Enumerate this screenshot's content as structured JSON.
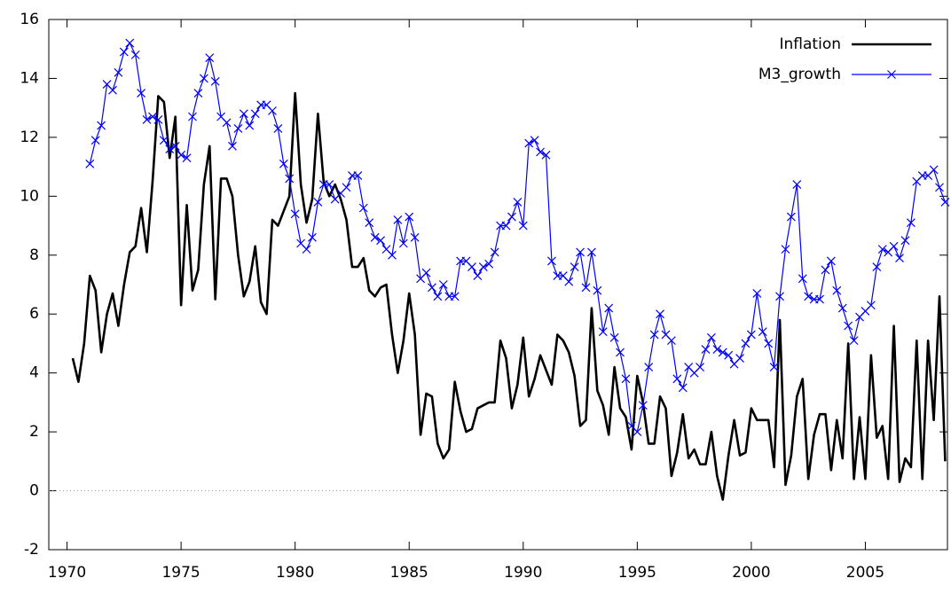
{
  "chart_data": {
    "type": "line",
    "x": [
      1970.25,
      1970.5,
      1970.75,
      1971,
      1971.25,
      1971.5,
      1971.75,
      1972,
      1972.25,
      1972.5,
      1972.75,
      1973,
      1973.25,
      1973.5,
      1973.75,
      1974,
      1974.25,
      1974.5,
      1974.75,
      1975,
      1975.25,
      1975.5,
      1975.75,
      1976,
      1976.25,
      1976.5,
      1976.75,
      1977,
      1977.25,
      1977.5,
      1977.75,
      1978,
      1978.25,
      1978.5,
      1978.75,
      1979,
      1979.25,
      1979.5,
      1979.75,
      1980,
      1980.25,
      1980.5,
      1980.75,
      1981,
      1981.25,
      1981.5,
      1981.75,
      1982,
      1982.25,
      1982.5,
      1982.75,
      1983,
      1983.25,
      1983.5,
      1983.75,
      1984,
      1984.25,
      1984.5,
      1984.75,
      1985,
      1985.25,
      1985.5,
      1985.75,
      1986,
      1986.25,
      1986.5,
      1986.75,
      1987,
      1987.25,
      1987.5,
      1987.75,
      1988,
      1988.25,
      1988.5,
      1988.75,
      1989,
      1989.25,
      1989.5,
      1989.75,
      1990,
      1990.25,
      1990.5,
      1990.75,
      1991,
      1991.25,
      1991.5,
      1991.75,
      1992,
      1992.25,
      1992.5,
      1992.75,
      1993,
      1993.25,
      1993.5,
      1993.75,
      1994,
      1994.25,
      1994.5,
      1994.75,
      1995,
      1995.25,
      1995.5,
      1995.75,
      1996,
      1996.25,
      1996.5,
      1996.75,
      1997,
      1997.25,
      1997.5,
      1997.75,
      1998,
      1998.25,
      1998.5,
      1998.75,
      1999,
      1999.25,
      1999.5,
      1999.75,
      2000,
      2000.25,
      2000.5,
      2000.75,
      2001,
      2001.25,
      2001.5,
      2001.75,
      2002,
      2002.25,
      2002.5,
      2002.75,
      2003,
      2003.25,
      2003.5,
      2003.75,
      2004,
      2004.25,
      2004.5,
      2004.75,
      2005,
      2005.25,
      2005.5,
      2005.75,
      2006,
      2006.25,
      2006.5,
      2006.75,
      2007,
      2007.25,
      2007.5,
      2007.75,
      2008,
      2008.25,
      2008.5
    ],
    "series": [
      {
        "name": "Inflation",
        "color": "#000000",
        "marker": false,
        "values": [
          4.5,
          3.7,
          5.0,
          7.3,
          6.8,
          4.7,
          6.0,
          6.7,
          5.6,
          7.0,
          8.1,
          8.3,
          9.6,
          8.1,
          10.5,
          13.4,
          13.2,
          11.3,
          12.7,
          6.3,
          9.7,
          6.8,
          7.5,
          10.4,
          11.7,
          6.5,
          10.6,
          10.6,
          10.0,
          8.0,
          6.6,
          7.1,
          8.3,
          6.4,
          6.0,
          9.2,
          9.0,
          9.5,
          10.0,
          13.5,
          10.4,
          9.1,
          9.9,
          12.8,
          10.5,
          10.0,
          10.4,
          9.9,
          9.2,
          7.6,
          7.6,
          7.9,
          6.8,
          6.6,
          6.9,
          7.0,
          5.3,
          4.0,
          5.1,
          6.7,
          5.3,
          1.9,
          3.3,
          3.2,
          1.6,
          1.1,
          1.4,
          3.7,
          2.7,
          2.0,
          2.1,
          2.8,
          2.9,
          3.0,
          3.0,
          5.1,
          4.5,
          2.8,
          3.6,
          5.2,
          3.2,
          3.8,
          4.6,
          4.1,
          3.6,
          5.3,
          5.1,
          4.7,
          3.9,
          2.2,
          2.4,
          6.2,
          3.4,
          2.9,
          1.9,
          4.2,
          2.8,
          2.5,
          1.4,
          3.9,
          3.0,
          1.6,
          1.6,
          3.2,
          2.8,
          0.5,
          1.3,
          2.6,
          1.1,
          1.4,
          0.9,
          0.9,
          2.0,
          0.5,
          -0.3,
          1.2,
          2.4,
          1.2,
          1.3,
          2.8,
          2.4,
          2.4,
          2.4,
          0.8,
          5.8,
          0.2,
          1.2,
          3.2,
          3.8,
          0.4,
          1.9,
          2.6,
          2.6,
          0.7,
          2.4,
          1.1,
          5.0,
          0.4,
          2.5,
          0.4,
          4.6,
          1.8,
          2.2,
          0.4,
          5.6,
          0.3,
          1.1,
          0.8,
          5.1,
          0.4,
          5.1,
          2.4,
          6.6,
          1.0
        ]
      },
      {
        "name": "M3_growth",
        "color": "#0000ff",
        "marker": true,
        "values": [
          null,
          null,
          null,
          11.1,
          11.9,
          12.4,
          13.8,
          13.6,
          14.2,
          14.9,
          15.2,
          14.8,
          13.5,
          12.6,
          12.7,
          12.6,
          11.9,
          11.6,
          11.7,
          11.4,
          11.3,
          12.7,
          13.5,
          14.0,
          14.7,
          13.9,
          12.7,
          12.5,
          11.7,
          12.3,
          12.8,
          12.4,
          12.8,
          13.1,
          13.1,
          12.9,
          12.3,
          11.1,
          10.6,
          9.4,
          8.4,
          8.2,
          8.6,
          9.8,
          10.4,
          10.4,
          9.9,
          10.1,
          10.3,
          10.7,
          10.7,
          9.6,
          9.1,
          8.6,
          8.5,
          8.2,
          8.0,
          9.2,
          8.4,
          9.3,
          8.6,
          7.2,
          7.4,
          6.9,
          6.6,
          7.0,
          6.6,
          6.6,
          7.8,
          7.8,
          7.6,
          7.3,
          7.6,
          7.7,
          8.1,
          9.0,
          9.0,
          9.3,
          9.8,
          9.0,
          11.8,
          11.9,
          11.5,
          11.4,
          7.8,
          7.3,
          7.3,
          7.1,
          7.6,
          8.1,
          6.9,
          8.1,
          6.8,
          5.4,
          6.2,
          5.2,
          4.7,
          3.8,
          2.2,
          2.0,
          2.9,
          4.2,
          5.3,
          6.0,
          5.3,
          5.1,
          3.8,
          3.5,
          4.2,
          4.0,
          4.2,
          4.8,
          5.2,
          4.8,
          4.7,
          4.6,
          4.3,
          4.5,
          5.0,
          5.3,
          6.7,
          5.4,
          5.0,
          4.2,
          6.6,
          8.2,
          9.3,
          10.4,
          7.2,
          6.6,
          6.5,
          6.5,
          7.5,
          7.8,
          6.8,
          6.2,
          5.6,
          5.1,
          5.9,
          6.1,
          6.3,
          7.6,
          8.2,
          8.1,
          8.3,
          7.9,
          8.5,
          9.1,
          10.5,
          10.7,
          10.7,
          10.9,
          10.3,
          9.8
        ]
      }
    ],
    "xlim": [
      1969.2,
      2008.6
    ],
    "xticks": [
      1970,
      1975,
      1980,
      1985,
      1990,
      1995,
      2000,
      2005
    ],
    "ylim": [
      -2,
      16
    ],
    "yticks": [
      -2,
      0,
      2,
      4,
      6,
      8,
      10,
      12,
      14,
      16
    ],
    "zero_line": true,
    "legend": "top-right"
  }
}
